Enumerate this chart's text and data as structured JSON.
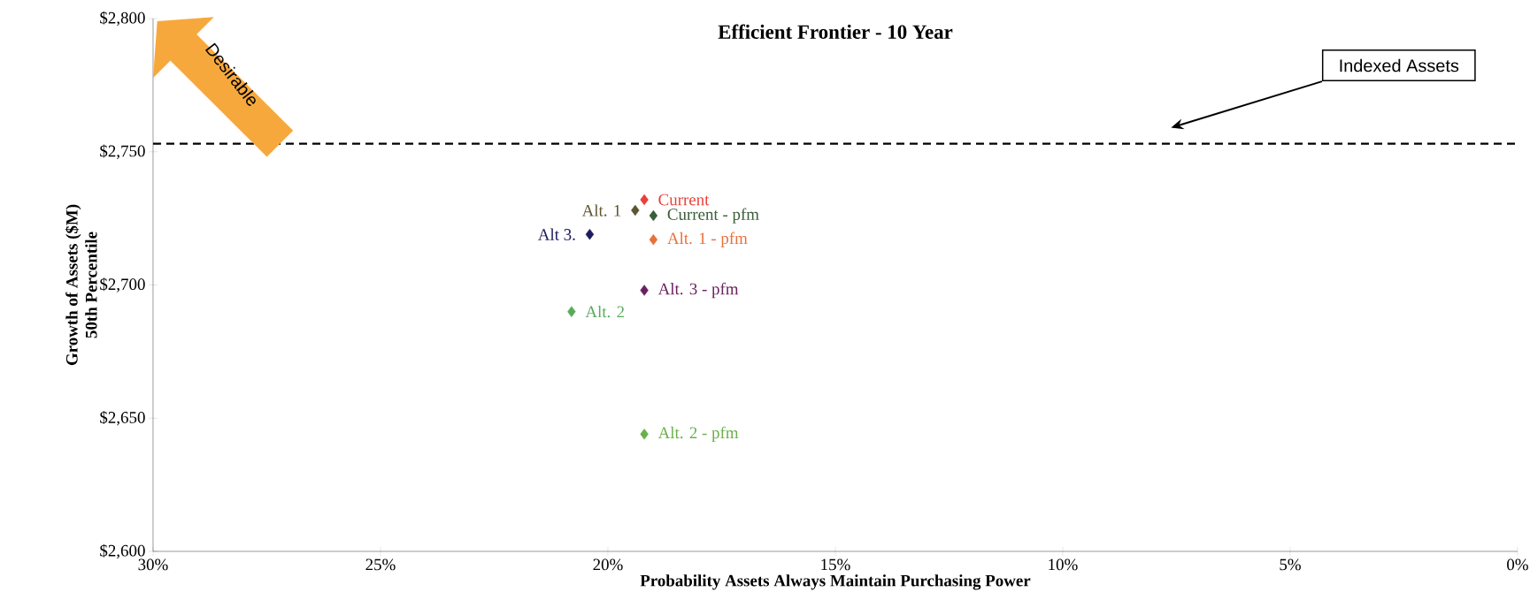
{
  "chart_data": {
    "type": "scatter",
    "title": "Efficient Frontier - 10 Year",
    "xlabel": "Probability Assets Always Maintain Purchasing Power",
    "ylabel": "Growth of Assets ($M)\n50th Percentile",
    "xlim": [
      30,
      0
    ],
    "ylim": [
      2600,
      2800
    ],
    "xticks": [
      {
        "value": 30,
        "label": "30%"
      },
      {
        "value": 25,
        "label": "25%"
      },
      {
        "value": 20,
        "label": "20%"
      },
      {
        "value": 15,
        "label": "15%"
      },
      {
        "value": 10,
        "label": "10%"
      },
      {
        "value": 5,
        "label": "5%"
      },
      {
        "value": 0,
        "label": "0%"
      }
    ],
    "yticks": [
      {
        "value": 2600,
        "label": "$2,600"
      },
      {
        "value": 2650,
        "label": "$2,650"
      },
      {
        "value": 2700,
        "label": "$2,700"
      },
      {
        "value": 2750,
        "label": "$2,750"
      },
      {
        "value": 2800,
        "label": "$2,800"
      }
    ],
    "marker": "diamond",
    "grid": false,
    "legend": false,
    "series": [
      {
        "name": "Current",
        "color": "#e8403a",
        "x": [
          19.2
        ],
        "values": [
          2732
        ]
      },
      {
        "name": "Alt. 1",
        "color": "#5e5530",
        "x": [
          19.4
        ],
        "values": [
          2728
        ]
      },
      {
        "name": "Current - pfm",
        "color": "#3a5e3a",
        "x": [
          19.0
        ],
        "values": [
          2726
        ]
      },
      {
        "name": "Alt 3.",
        "color": "#1c1c5e",
        "x": [
          20.4
        ],
        "values": [
          2719
        ]
      },
      {
        "name": "Alt. 1 - pfm",
        "color": "#e8703a",
        "x": [
          19.0
        ],
        "values": [
          2717
        ]
      },
      {
        "name": "Alt. 3 - pfm",
        "color": "#6a2060",
        "x": [
          19.2
        ],
        "values": [
          2698
        ]
      },
      {
        "name": "Alt. 2",
        "color": "#5aaa5a",
        "x": [
          20.8
        ],
        "values": [
          2690
        ]
      },
      {
        "name": "Alt. 2 - pfm",
        "color": "#6ab04a",
        "x": [
          19.2
        ],
        "values": [
          2644
        ]
      }
    ],
    "ref_lines": [
      {
        "axis": "y",
        "value": 2753,
        "label": "Indexed Assets",
        "color": "#000000",
        "line_style": "dashed"
      }
    ],
    "annotations": [
      "Desirable"
    ]
  }
}
